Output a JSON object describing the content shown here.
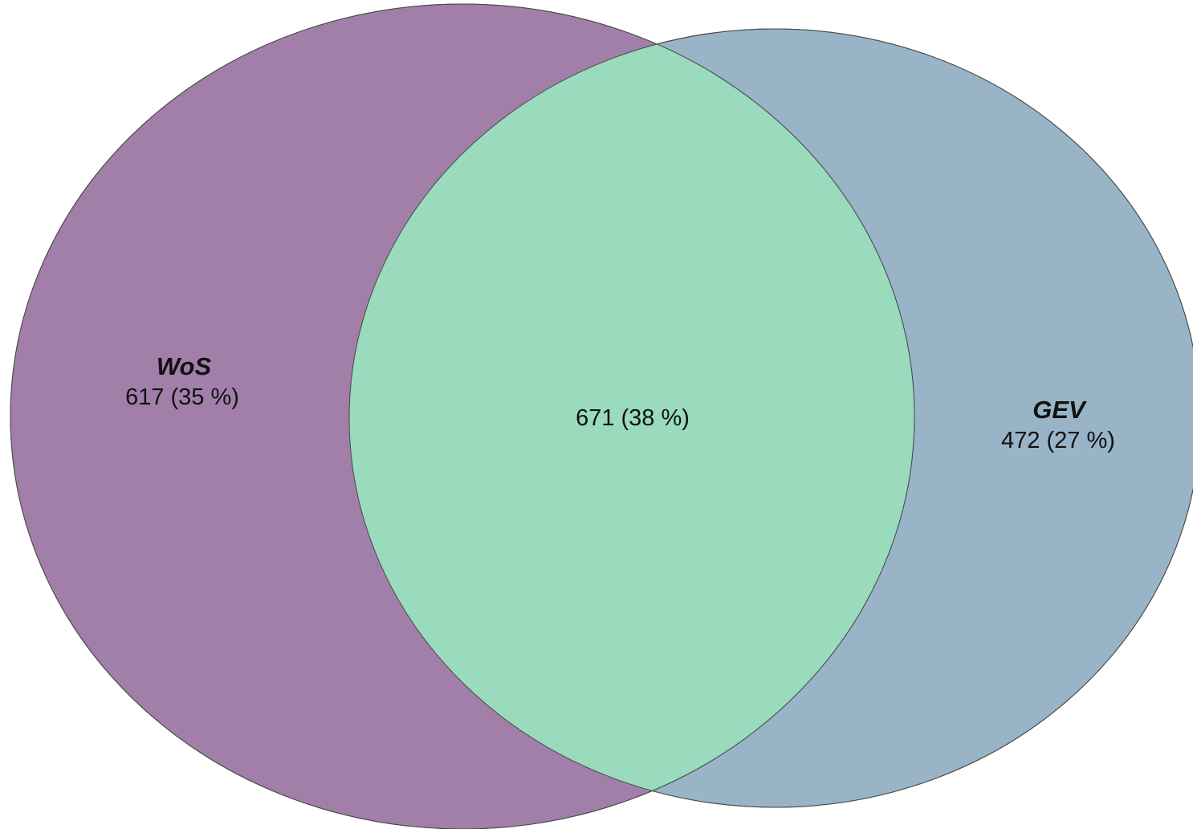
{
  "diagram": {
    "type": "venn",
    "sets": [
      {
        "name": "WoS",
        "only_count": "617 (35 %)",
        "color": "#A17FA8"
      },
      {
        "name": "GEV",
        "only_count": "472 (27 %)",
        "color": "#98B4C6"
      }
    ],
    "intersection": {
      "count": "671 (38 %)",
      "color": "#9ADBBD"
    },
    "outline_color": "#4A4A4A"
  }
}
